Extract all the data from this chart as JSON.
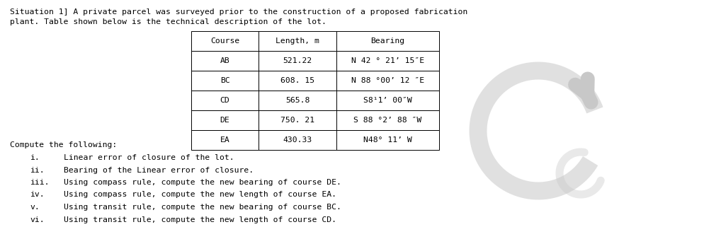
{
  "title_line1": "Situation 1] A private parcel was surveyed prior to the construction of a proposed fabrication",
  "title_line2": "plant. Table shown below is the technical description of the lot.",
  "table_headers": [
    "Course",
    "Length, m",
    "Bearing"
  ],
  "table_rows": [
    [
      "AB",
      "521.22",
      "N 42 ° 21’ 15″E"
    ],
    [
      "BC",
      "608. 15",
      "N 88 °00’ 12 ″E"
    ],
    [
      "CD",
      "565.8",
      "S8¹1’ 00″W"
    ],
    [
      "DE",
      "750. 21",
      "S 88 °2’ 88 ″W"
    ],
    [
      "EA",
      "430.33",
      "N48° 11’ W"
    ]
  ],
  "compute_header": "Compute the following:",
  "items": [
    [
      "i.",
      "Linear error of closure of the lot."
    ],
    [
      "ii.",
      "Bearing of the Linear error of closure."
    ],
    [
      "iii.",
      "Using compass rule, compute the new bearing of course DE."
    ],
    [
      "iv.",
      "Using compass rule, compute the new length of course EA."
    ],
    [
      "v.",
      "Using transit rule, compute the new bearing of course BC."
    ],
    [
      "vi.",
      "Using transit rule, compute the new length of course CD."
    ]
  ],
  "bg_color": "#ffffff",
  "text_color": "#000000",
  "font_size": 8.2,
  "table_font_size": 8.2
}
